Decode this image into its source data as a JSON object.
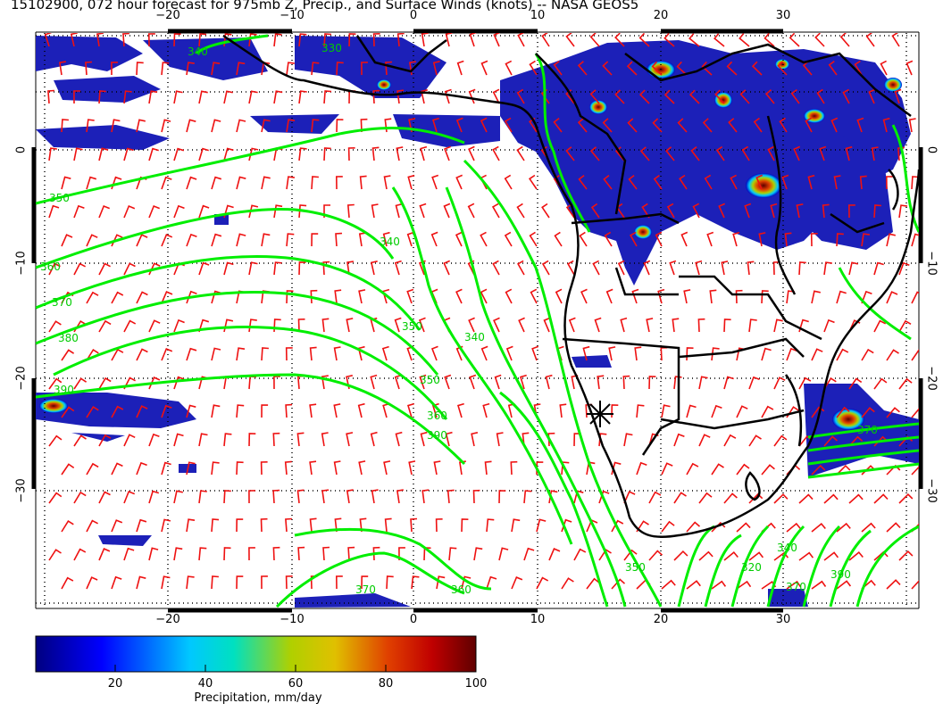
{
  "title": "15102900, 072 hour forecast for 975mb Z, Precip., and Surface Winds (knots) -- NASA GEOS5",
  "axes": {
    "longitude_ticks": [
      "−20",
      "−10",
      "0",
      "10",
      "20",
      "30"
    ],
    "latitude_ticks": [
      "0",
      "−10",
      "−20",
      "−30"
    ]
  },
  "map_region": {
    "lon_range": [
      -30,
      40
    ],
    "lat_range": [
      -40,
      10
    ]
  },
  "contours": {
    "variable": "975mb geopotential height",
    "labels": [
      "340",
      "350",
      "360",
      "370",
      "380",
      "390",
      "330",
      "320"
    ],
    "color": "#00ee00"
  },
  "wind_barbs": {
    "variable": "Surface Winds (knots)",
    "color": "#ee1111"
  },
  "coastline_color": "#000000",
  "colorbar": {
    "labels": [
      "20",
      "40",
      "60",
      "80",
      "100"
    ],
    "title": "Precipitation, mm/day",
    "range": [
      0,
      100
    ],
    "colors": [
      "#000080",
      "#0000ff",
      "#00c8ff",
      "#00e0c0",
      "#b0d000",
      "#e0c000",
      "#e04000",
      "#c00000",
      "#600000"
    ]
  }
}
